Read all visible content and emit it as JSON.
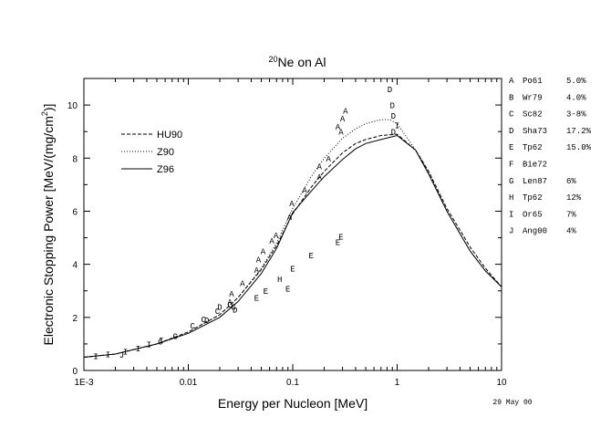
{
  "chart_data": {
    "type": "line",
    "title_sup": "20",
    "title_main": "Ne on Al",
    "xlabel": "Energy per Nucleon [MeV]",
    "ylabel_main": "Electronic Stopping Power [MeV/(mg/cm",
    "ylabel_sup": "2",
    "ylabel_end": ")]",
    "xscale": "log",
    "xlim": [
      0.001,
      10
    ],
    "ylim": [
      0,
      11
    ],
    "xticks": [
      {
        "value": 0.001,
        "label": "1E-3"
      },
      {
        "value": 0.01,
        "label": "0.01"
      },
      {
        "value": 0.1,
        "label": "0.1"
      },
      {
        "value": 1,
        "label": "1"
      },
      {
        "value": 10,
        "label": "10"
      }
    ],
    "yticks": [
      {
        "value": 0,
        "label": "0"
      },
      {
        "value": 2,
        "label": "2"
      },
      {
        "value": 4,
        "label": "4"
      },
      {
        "value": 6,
        "label": "6"
      },
      {
        "value": 8,
        "label": "8"
      },
      {
        "value": 10,
        "label": "10"
      }
    ],
    "date_stamp": "29 May 00",
    "legend_position": "upper-left",
    "series": [
      {
        "name": "HU90",
        "style": "dashed",
        "x": [
          0.001,
          0.002,
          0.005,
          0.01,
          0.02,
          0.03,
          0.05,
          0.07,
          0.1,
          0.15,
          0.2,
          0.3,
          0.4,
          0.5,
          0.7,
          1,
          1.5,
          2,
          3,
          5,
          7,
          10
        ],
        "y": [
          0.5,
          0.62,
          1.0,
          1.45,
          2.1,
          2.75,
          3.8,
          4.7,
          5.9,
          6.9,
          7.5,
          8.2,
          8.55,
          8.7,
          8.85,
          8.9,
          8.3,
          7.5,
          6.1,
          4.65,
          3.85,
          3.15
        ]
      },
      {
        "name": "Z90",
        "style": "dotted",
        "x": [
          0.001,
          0.002,
          0.005,
          0.01,
          0.02,
          0.03,
          0.05,
          0.07,
          0.1,
          0.15,
          0.2,
          0.3,
          0.4,
          0.5,
          0.7,
          0.85,
          1,
          1.5,
          2,
          3,
          5,
          7,
          10
        ],
        "y": [
          0.5,
          0.62,
          1.0,
          1.45,
          2.1,
          2.75,
          3.85,
          4.8,
          6.1,
          7.3,
          8.0,
          8.75,
          9.1,
          9.3,
          9.45,
          9.45,
          9.3,
          8.3,
          7.5,
          6.0,
          4.5,
          3.75,
          3.15
        ]
      },
      {
        "name": "Z96",
        "style": "solid",
        "x": [
          0.001,
          0.002,
          0.005,
          0.01,
          0.02,
          0.03,
          0.05,
          0.07,
          0.1,
          0.15,
          0.2,
          0.3,
          0.4,
          0.5,
          0.7,
          1,
          1.5,
          2,
          3,
          5,
          7,
          10
        ],
        "y": [
          0.5,
          0.62,
          1.0,
          1.4,
          2.0,
          2.6,
          3.65,
          4.6,
          5.95,
          6.75,
          7.3,
          7.95,
          8.35,
          8.55,
          8.7,
          8.85,
          8.3,
          7.4,
          6.0,
          4.5,
          3.75,
          3.15
        ]
      }
    ],
    "data_points": [
      {
        "sym": "A",
        "x": 0.025,
        "y": 2.6
      },
      {
        "sym": "A",
        "x": 0.026,
        "y": 2.9
      },
      {
        "sym": "A",
        "x": 0.033,
        "y": 3.3
      },
      {
        "sym": "A",
        "x": 0.045,
        "y": 3.8
      },
      {
        "sym": "A",
        "x": 0.047,
        "y": 4.2
      },
      {
        "sym": "A",
        "x": 0.052,
        "y": 4.5
      },
      {
        "sym": "A",
        "x": 0.063,
        "y": 4.9
      },
      {
        "sym": "A",
        "x": 0.069,
        "y": 5.1
      },
      {
        "sym": "A",
        "x": 0.093,
        "y": 5.8
      },
      {
        "sym": "A",
        "x": 0.098,
        "y": 6.3
      },
      {
        "sym": "A",
        "x": 0.13,
        "y": 6.8
      },
      {
        "sym": "A",
        "x": 0.18,
        "y": 7.3
      },
      {
        "sym": "A",
        "x": 0.18,
        "y": 7.7
      },
      {
        "sym": "A",
        "x": 0.22,
        "y": 8.0
      },
      {
        "sym": "A",
        "x": 0.27,
        "y": 9.2
      },
      {
        "sym": "A",
        "x": 0.29,
        "y": 9.0
      },
      {
        "sym": "A",
        "x": 0.3,
        "y": 9.5
      },
      {
        "sym": "A",
        "x": 0.32,
        "y": 9.8
      },
      {
        "sym": "C",
        "x": 0.0054,
        "y": 1.1
      },
      {
        "sym": "C",
        "x": 0.0075,
        "y": 1.3
      },
      {
        "sym": "C",
        "x": 0.011,
        "y": 1.7
      },
      {
        "sym": "C",
        "x": 0.014,
        "y": 1.95
      },
      {
        "sym": "C",
        "x": 0.019,
        "y": 2.25
      },
      {
        "sym": "C",
        "x": 0.025,
        "y": 2.5
      },
      {
        "sym": "D",
        "x": 0.85,
        "y": 10.6
      },
      {
        "sym": "D",
        "x": 0.9,
        "y": 10.0
      },
      {
        "sym": "D",
        "x": 0.92,
        "y": 9.6
      },
      {
        "sym": "D",
        "x": 0.92,
        "y": 9.0
      },
      {
        "sym": "D",
        "x": 0.015,
        "y": 1.9
      },
      {
        "sym": "D",
        "x": 0.02,
        "y": 2.4
      },
      {
        "sym": "D",
        "x": 0.028,
        "y": 2.3
      },
      {
        "sym": "E",
        "x": 0.045,
        "y": 2.75
      },
      {
        "sym": "E",
        "x": 0.055,
        "y": 3.0
      },
      {
        "sym": "E",
        "x": 0.09,
        "y": 3.1
      },
      {
        "sym": "E",
        "x": 0.1,
        "y": 3.85
      },
      {
        "sym": "E",
        "x": 0.15,
        "y": 4.35
      },
      {
        "sym": "E",
        "x": 0.27,
        "y": 4.85
      },
      {
        "sym": "E",
        "x": 0.29,
        "y": 5.05
      },
      {
        "sym": "G",
        "x": 0.027,
        "y": 2.4
      },
      {
        "sym": "H",
        "x": 0.075,
        "y": 3.45
      },
      {
        "sym": "I",
        "x": 0.0013,
        "y": 0.55
      },
      {
        "sym": "I",
        "x": 0.0017,
        "y": 0.62
      },
      {
        "sym": "I",
        "x": 0.0025,
        "y": 0.72
      },
      {
        "sym": "I",
        "x": 0.0033,
        "y": 0.85
      },
      {
        "sym": "I",
        "x": 0.0042,
        "y": 1.0
      },
      {
        "sym": "I",
        "x": 0.0055,
        "y": 1.15
      },
      {
        "sym": "I",
        "x": 1.0,
        "y": 9.25
      },
      {
        "sym": "J",
        "x": 0.0023,
        "y": 0.6
      }
    ]
  },
  "legend_curves": [
    {
      "label": "HU90",
      "style": "dashed"
    },
    {
      "label": "Z90",
      "style": "dotted"
    },
    {
      "label": "Z96",
      "style": "solid"
    }
  ],
  "references": [
    {
      "key": "A",
      "ref": "Po61",
      "err": "5.0%"
    },
    {
      "key": "B",
      "ref": "Wr79",
      "err": "4.0%"
    },
    {
      "key": "C",
      "ref": "Sc82",
      "err": "3-8%"
    },
    {
      "key": "D",
      "ref": "Sha73",
      "err": "17.2%"
    },
    {
      "key": "E",
      "ref": "Tp62",
      "err": "15.0%"
    },
    {
      "key": "F",
      "ref": "Bie72",
      "err": ""
    },
    {
      "key": "G",
      "ref": "Len87",
      "err": "6%"
    },
    {
      "key": "H",
      "ref": "Tp62",
      "err": "12%"
    },
    {
      "key": "I",
      "ref": "Or65",
      "err": "7%"
    },
    {
      "key": "J",
      "ref": "Ang00",
      "err": "4%"
    }
  ]
}
